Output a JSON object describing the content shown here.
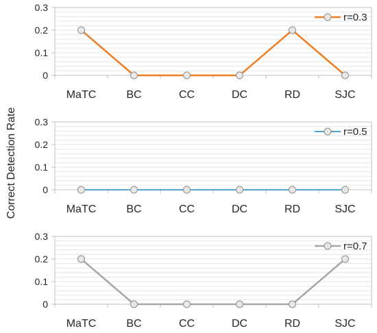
{
  "chart_data": {
    "type": "line",
    "ylabel": "Correct Detection Rate",
    "panels": [
      {
        "categories": [
          "MaTC",
          "BC",
          "CC",
          "DC",
          "RD",
          "SJC"
        ],
        "yticks": [
          "0",
          "0.1",
          "0.2",
          "0.3"
        ],
        "ylim": [
          0,
          0.3
        ],
        "grid": true,
        "legend_position": "top-right",
        "series": [
          {
            "name": "r=0.3",
            "color": "#f07e21",
            "values": [
              0.2,
              0,
              0,
              0,
              0.2,
              0
            ]
          }
        ]
      },
      {
        "categories": [
          "MaTC",
          "BC",
          "CC",
          "DC",
          "RD",
          "SJC"
        ],
        "yticks": [
          "0",
          "0.1",
          "0.2",
          "0.3"
        ],
        "ylim": [
          0,
          0.3
        ],
        "grid": true,
        "legend_position": "top-right",
        "series": [
          {
            "name": "r=0.5",
            "color": "#1f86c8",
            "values": [
              0,
              0,
              0,
              0,
              0,
              0
            ]
          }
        ]
      },
      {
        "categories": [
          "MaTC",
          "BC",
          "CC",
          "DC",
          "RD",
          "SJC"
        ],
        "yticks": [
          "0",
          "0.1",
          "0.2",
          "0.3"
        ],
        "ylim": [
          0,
          0.3
        ],
        "grid": true,
        "legend_position": "top-right",
        "series": [
          {
            "name": "r=0.7",
            "color": "#a6a6a6",
            "values": [
              0.2,
              0,
              0,
              0,
              0,
              0.2
            ]
          }
        ]
      }
    ]
  }
}
